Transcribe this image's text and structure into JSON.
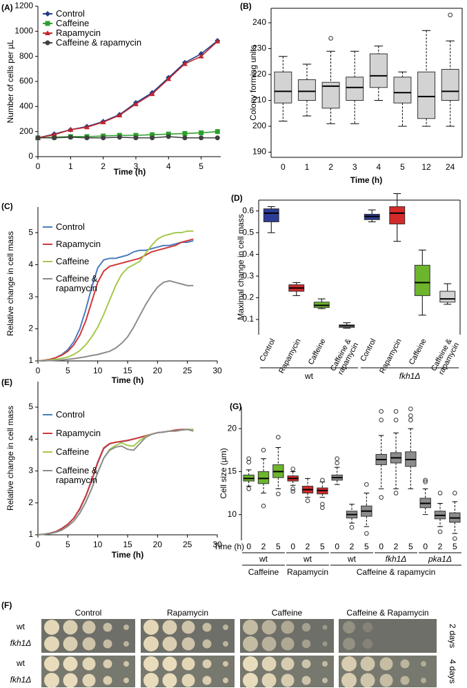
{
  "chart_data": [
    {
      "type": "line",
      "panel": "(A)",
      "x_label": "Time (h)",
      "y_label": "Number of cells per µL",
      "x": [
        0,
        0.5,
        1,
        1.5,
        2,
        2.5,
        3,
        3.5,
        4,
        4.5,
        5,
        5.5
      ],
      "xlim": [
        0,
        5.6
      ],
      "xticks": [
        0,
        1,
        2,
        3,
        4,
        5
      ],
      "ylim": [
        0,
        1200
      ],
      "yticks": [
        0,
        200,
        400,
        600,
        800,
        1000,
        1200
      ],
      "legend": "upper left",
      "series": [
        {
          "name": "Control",
          "color": "#1f3c88",
          "marker": "diamond",
          "values": [
            150,
            180,
            215,
            240,
            280,
            335,
            430,
            510,
            630,
            750,
            820,
            925
          ]
        },
        {
          "name": "Caffeine",
          "color": "#2ca02c",
          "marker": "square",
          "values": [
            150,
            155,
            160,
            160,
            165,
            170,
            170,
            175,
            180,
            185,
            190,
            200
          ]
        },
        {
          "name": "Rapamycin",
          "color": "#c0262d",
          "marker": "triangle",
          "values": [
            150,
            175,
            215,
            235,
            275,
            330,
            420,
            500,
            620,
            740,
            800,
            920
          ]
        },
        {
          "name": "Caffeine & rapamycin",
          "color": "#404040",
          "marker": "circle",
          "values": [
            150,
            150,
            155,
            150,
            150,
            155,
            150,
            150,
            160,
            150,
            150,
            150
          ]
        }
      ]
    },
    {
      "type": "box",
      "panel": "(B)",
      "x_label": "Time (h)",
      "y_label": "Colony forming units",
      "categories": [
        "0",
        "1",
        "2",
        "3",
        "4",
        "5",
        "12",
        "24"
      ],
      "color": "#d3d3d3",
      "ylim": [
        188,
        245.6
      ],
      "yticks": [
        190,
        200,
        210,
        220,
        230,
        240
      ],
      "values": [
        {
          "min": 202,
          "q1": 209,
          "median": 213.5,
          "q3": 221,
          "max": 227
        },
        {
          "min": 204,
          "q1": 210,
          "median": 213.5,
          "q3": 218,
          "max": 224
        },
        {
          "min": 201,
          "q1": 207,
          "median": 215.5,
          "q3": 217,
          "max": 229,
          "outliers": [
            234
          ]
        },
        {
          "min": 201,
          "q1": 210,
          "median": 215,
          "q3": 219,
          "max": 229
        },
        {
          "min": 210,
          "q1": 215,
          "median": 219.5,
          "q3": 228,
          "max": 231
        },
        {
          "min": 200,
          "q1": 209,
          "median": 213,
          "q3": 219,
          "max": 221
        },
        {
          "min": 200,
          "q1": 203,
          "median": 211.5,
          "q3": 221,
          "max": 237
        },
        {
          "min": 200,
          "q1": 210,
          "median": 213.5,
          "q3": 222,
          "max": 233,
          "outliers": [
            243
          ]
        }
      ]
    },
    {
      "type": "line",
      "panel": "(C)",
      "x_label": "Time (h)",
      "y_label": "Relative change in cell mass",
      "x": [
        0,
        1,
        2,
        3,
        4,
        5,
        6,
        7,
        8,
        9,
        10,
        11,
        12,
        13,
        14,
        15,
        16,
        17,
        18,
        19,
        20,
        21,
        22,
        23,
        24,
        25,
        26
      ],
      "xlim": [
        0,
        30
      ],
      "xticks": [
        0,
        5,
        10,
        15,
        20,
        25,
        30
      ],
      "ylim": [
        1,
        5.8
      ],
      "yticks": [
        1,
        2,
        3,
        4,
        5
      ],
      "legend": "upper left",
      "series": [
        {
          "name": "Control",
          "color": "#4a7cc0",
          "values": [
            1.0,
            1.02,
            1.05,
            1.1,
            1.2,
            1.35,
            1.6,
            2.0,
            2.6,
            3.3,
            3.9,
            4.15,
            4.2,
            4.2,
            4.25,
            4.3,
            4.4,
            4.45,
            4.45,
            4.5,
            4.55,
            4.6,
            4.6,
            4.65,
            4.7,
            4.7,
            4.75
          ]
        },
        {
          "name": "Rapamycin",
          "color": "#d0373a",
          "values": [
            1.0,
            1.02,
            1.05,
            1.1,
            1.18,
            1.3,
            1.5,
            1.8,
            2.25,
            2.85,
            3.45,
            3.8,
            3.95,
            4.0,
            4.05,
            4.1,
            4.15,
            4.2,
            4.3,
            4.4,
            4.45,
            4.5,
            4.55,
            4.6,
            4.7,
            4.75,
            4.8
          ]
        },
        {
          "name": "Caffeine",
          "color": "#a5c84a",
          "values": [
            1.0,
            1.01,
            1.03,
            1.05,
            1.08,
            1.12,
            1.2,
            1.32,
            1.5,
            1.75,
            2.05,
            2.45,
            2.9,
            3.35,
            3.7,
            3.9,
            4.0,
            4.1,
            4.35,
            4.6,
            4.8,
            4.9,
            4.95,
            5.0,
            5.0,
            5.05,
            5.05
          ]
        },
        {
          "name": "Caffeine & rapamycin",
          "color": "#8c8c8c",
          "values": [
            1.0,
            1.0,
            1.01,
            1.02,
            1.03,
            1.05,
            1.07,
            1.1,
            1.13,
            1.17,
            1.2,
            1.25,
            1.3,
            1.4,
            1.55,
            1.75,
            2.05,
            2.4,
            2.75,
            3.05,
            3.3,
            3.45,
            3.5,
            3.45,
            3.4,
            3.35,
            3.35
          ]
        }
      ]
    },
    {
      "type": "box",
      "panel": "(D)",
      "y_label": "Maximal change in cell mass",
      "ylim": [
        0.03,
        0.65
      ],
      "yticks": [
        0.1,
        0.2,
        0.3,
        0.4,
        0.5,
        0.6
      ],
      "groups": [
        {
          "label": "wt",
          "categories": [
            "Control",
            "Rapamycin",
            "Caffeine",
            "Caffeine & rapamycin"
          ],
          "colors": [
            "#2d3c94",
            "#d42a2a",
            "#6cb52d",
            "#d3d3d3"
          ],
          "values": [
            {
              "min": 0.5,
              "q1": 0.55,
              "median": 0.59,
              "q3": 0.61,
              "max": 0.62
            },
            {
              "min": 0.21,
              "q1": 0.23,
              "median": 0.245,
              "q3": 0.26,
              "max": 0.27
            },
            {
              "min": 0.15,
              "q1": 0.155,
              "median": 0.165,
              "q3": 0.18,
              "max": 0.195
            },
            {
              "min": 0.06,
              "q1": 0.063,
              "median": 0.07,
              "q3": 0.075,
              "max": 0.085
            }
          ]
        },
        {
          "label": "fkh1Δ",
          "categories": [
            "Control",
            "Rapamycin",
            "Caffeine",
            "Caffeine & rapamycin"
          ],
          "colors": [
            "#2d3c94",
            "#d42a2a",
            "#6cb52d",
            "#d3d3d3"
          ],
          "values": [
            {
              "min": 0.55,
              "q1": 0.56,
              "median": 0.575,
              "q3": 0.585,
              "max": 0.605
            },
            {
              "min": 0.46,
              "q1": 0.54,
              "median": 0.59,
              "q3": 0.62,
              "max": 0.68
            },
            {
              "min": 0.12,
              "q1": 0.21,
              "median": 0.27,
              "q3": 0.35,
              "max": 0.42
            },
            {
              "min": 0.17,
              "q1": 0.18,
              "median": 0.195,
              "q3": 0.23,
              "max": 0.265
            }
          ]
        }
      ]
    },
    {
      "type": "line",
      "panel": "(E)",
      "x_label": "Time (h)",
      "y_label": "Relative change in cell mass",
      "x": [
        0,
        1,
        2,
        3,
        4,
        5,
        6,
        7,
        8,
        9,
        10,
        11,
        12,
        13,
        14,
        15,
        16,
        17,
        18,
        19,
        20,
        21,
        22,
        23,
        24,
        25,
        26
      ],
      "xlim": [
        0,
        30
      ],
      "xticks": [
        0,
        5,
        10,
        15,
        20,
        25,
        30
      ],
      "ylim": [
        1,
        5.8
      ],
      "yticks": [
        1,
        2,
        3,
        4,
        5
      ],
      "legend": "upper left",
      "series": [
        {
          "name": "Control",
          "color": "#4a7cc0",
          "values": [
            1.0,
            1.02,
            1.05,
            1.1,
            1.2,
            1.33,
            1.52,
            1.8,
            2.2,
            2.7,
            3.25,
            3.7,
            3.85,
            3.9,
            3.92,
            3.95,
            4.0,
            4.05,
            4.1,
            4.15,
            4.2,
            4.22,
            4.25,
            4.28,
            4.3,
            4.3,
            4.3
          ]
        },
        {
          "name": "Rapamycin",
          "color": "#d0373a",
          "values": [
            1.0,
            1.02,
            1.05,
            1.1,
            1.2,
            1.33,
            1.52,
            1.82,
            2.22,
            2.72,
            3.28,
            3.72,
            3.86,
            3.9,
            3.93,
            3.96,
            4.0,
            4.05,
            4.1,
            4.15,
            4.2,
            4.22,
            4.25,
            4.28,
            4.3,
            4.3,
            4.3
          ]
        },
        {
          "name": "Caffeine",
          "color": "#a5c84a",
          "values": [
            1.0,
            1.02,
            1.04,
            1.08,
            1.15,
            1.27,
            1.43,
            1.68,
            2.02,
            2.45,
            2.95,
            3.4,
            3.68,
            3.8,
            3.88,
            3.8,
            3.78,
            3.95,
            4.08,
            4.15,
            4.2,
            4.22,
            4.25,
            4.25,
            4.28,
            4.3,
            4.3
          ]
        },
        {
          "name": "Caffeine & rapamycin",
          "color": "#8c8c8c",
          "values": [
            1.0,
            1.02,
            1.04,
            1.08,
            1.15,
            1.27,
            1.43,
            1.68,
            2.02,
            2.45,
            2.95,
            3.4,
            3.65,
            3.75,
            3.78,
            3.68,
            3.65,
            3.85,
            4.05,
            4.15,
            4.2,
            4.22,
            4.25,
            4.25,
            4.28,
            4.3,
            4.25
          ]
        }
      ]
    },
    {
      "type": "box",
      "panel": "(G)",
      "y_label": "Cell size (µm)",
      "time_label": "Time (h)",
      "ylim": [
        7,
        22.5
      ],
      "yticks": [
        10,
        15,
        20
      ],
      "treatments": [
        {
          "label": "Caffeine",
          "strains": [
            {
              "label": "wt",
              "color": "#6cb52d",
              "categories": [
                "0",
                "2",
                "5"
              ],
              "values": [
                {
                  "min": 13.3,
                  "q1": 13.9,
                  "median": 14.2,
                  "q3": 14.6,
                  "max": 15.2,
                  "outliers": [
                    16.5,
                    16.1,
                    13.0
                  ]
                },
                {
                  "min": 12.5,
                  "q1": 13.6,
                  "median": 14.2,
                  "q3": 15.0,
                  "max": 16.5,
                  "outliers": [
                    11.0,
                    17.5
                  ]
                },
                {
                  "min": 13.0,
                  "q1": 14.3,
                  "median": 15.0,
                  "q3": 15.8,
                  "max": 17.8,
                  "outliers": [
                    19.0,
                    12.4
                  ]
                }
              ]
            }
          ]
        },
        {
          "label": "Rapamycin",
          "strains": [
            {
              "label": "wt",
              "color": "#d42a2a",
              "categories": [
                "0",
                "2",
                "5"
              ],
              "values": [
                {
                  "min": 13.4,
                  "q1": 13.9,
                  "median": 14.2,
                  "q3": 14.5,
                  "max": 15.0,
                  "outliers": [
                    15.3,
                    13.0,
                    12.7
                  ]
                },
                {
                  "min": 12.0,
                  "q1": 12.5,
                  "median": 12.9,
                  "q3": 13.3,
                  "max": 14.2,
                  "outliers": [
                    11.6
                  ]
                },
                {
                  "min": 12.0,
                  "q1": 12.4,
                  "median": 12.8,
                  "q3": 13.1,
                  "max": 13.8,
                  "outliers": [
                    11.2,
                    10.8,
                    14.0
                  ]
                }
              ]
            }
          ]
        },
        {
          "label": "Caffeine & rapamycin",
          "strains": [
            {
              "label": "wt",
              "color": "#8c8c8c",
              "categories": [
                "0",
                "2",
                "5"
              ],
              "values": [
                {
                  "min": 13.5,
                  "q1": 14.0,
                  "median": 14.3,
                  "q3": 14.6,
                  "max": 15.5,
                  "outliers": [
                    16.5,
                    16.0
                  ]
                },
                {
                  "min": 9.0,
                  "q1": 9.6,
                  "median": 10.0,
                  "q3": 10.4,
                  "max": 11.2,
                  "outliers": [
                    8.5
                  ]
                },
                {
                  "min": 8.6,
                  "q1": 9.8,
                  "median": 10.4,
                  "q3": 11.0,
                  "max": 12.5,
                  "outliers": [
                    13.5,
                    7.8
                  ]
                }
              ]
            },
            {
              "label": "fkh1Δ",
              "color": "#8c8c8c",
              "categories": [
                "0",
                "2",
                "5"
              ],
              "values": [
                {
                  "min": 13.0,
                  "q1": 15.8,
                  "median": 16.4,
                  "q3": 17.0,
                  "max": 19.2,
                  "outliers": [
                    22.0,
                    21.0,
                    12.0
                  ]
                },
                {
                  "min": 13.0,
                  "q1": 16.0,
                  "median": 16.6,
                  "q3": 17.2,
                  "max": 19.5,
                  "outliers": [
                    22.0,
                    21.0,
                    12.5
                  ]
                },
                {
                  "min": 13.0,
                  "q1": 15.6,
                  "median": 16.4,
                  "q3": 17.3,
                  "max": 20.0,
                  "outliers": [
                    22.3,
                    21.5,
                    21.0
                  ]
                }
              ]
            },
            {
              "label": "pka1Δ",
              "color": "#8c8c8c",
              "categories": [
                "0",
                "2",
                "5"
              ],
              "values": [
                {
                  "min": 10.0,
                  "q1": 10.8,
                  "median": 11.3,
                  "q3": 11.9,
                  "max": 13.0,
                  "outliers": [
                    14.0,
                    13.8
                  ]
                },
                {
                  "min": 8.6,
                  "q1": 9.5,
                  "median": 9.9,
                  "q3": 10.4,
                  "max": 11.3,
                  "outliers": [
                    12.5,
                    8.0
                  ]
                },
                {
                  "min": 7.8,
                  "q1": 9.1,
                  "median": 9.6,
                  "q3": 10.2,
                  "max": 11.5,
                  "outliers": [
                    12.5,
                    7.2
                  ]
                }
              ]
            }
          ]
        }
      ]
    }
  ],
  "plates": {
    "panel": "(F)",
    "conditions": [
      "Control",
      "Rapamycin",
      "Caffeine",
      "Caffeine & Rapamycin"
    ],
    "rows": [
      {
        "duration": "2 days",
        "strains": [
          "wt",
          "fkh1Δ"
        ]
      },
      {
        "duration": "4 days",
        "strains": [
          "wt",
          "fkh1Δ"
        ]
      }
    ]
  }
}
